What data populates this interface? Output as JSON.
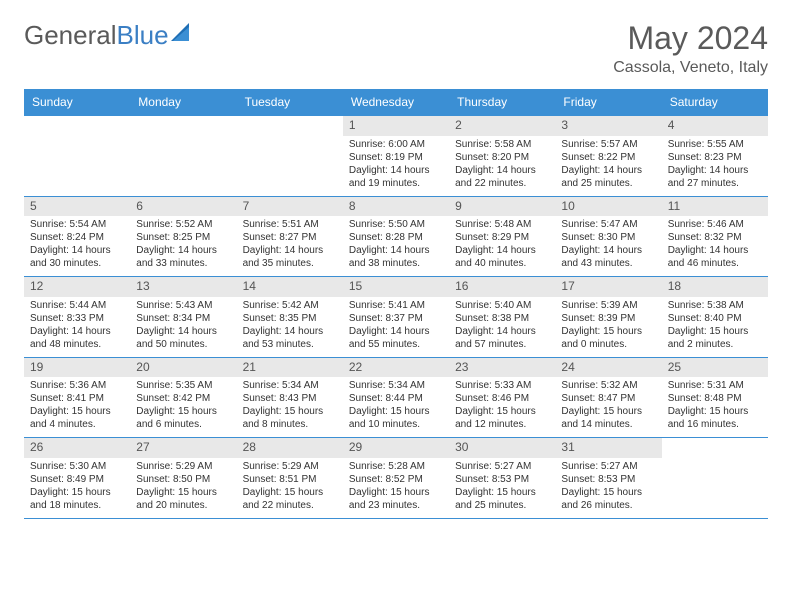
{
  "brand": {
    "part1": "General",
    "part2": "Blue"
  },
  "title": "May 2024",
  "location": "Cassola, Veneto, Italy",
  "colors": {
    "header_bg": "#3b8fd4",
    "header_text": "#ffffff",
    "rule": "#3b8fd4",
    "daynum_bg": "#e8e8e8",
    "text": "#333333",
    "title_text": "#5a5a5a"
  },
  "weekdays": [
    "Sunday",
    "Monday",
    "Tuesday",
    "Wednesday",
    "Thursday",
    "Friday",
    "Saturday"
  ],
  "weeks": [
    [
      null,
      null,
      null,
      {
        "n": "1",
        "sr": "6:00 AM",
        "ss": "8:19 PM",
        "dl": "14 hours and 19 minutes."
      },
      {
        "n": "2",
        "sr": "5:58 AM",
        "ss": "8:20 PM",
        "dl": "14 hours and 22 minutes."
      },
      {
        "n": "3",
        "sr": "5:57 AM",
        "ss": "8:22 PM",
        "dl": "14 hours and 25 minutes."
      },
      {
        "n": "4",
        "sr": "5:55 AM",
        "ss": "8:23 PM",
        "dl": "14 hours and 27 minutes."
      }
    ],
    [
      {
        "n": "5",
        "sr": "5:54 AM",
        "ss": "8:24 PM",
        "dl": "14 hours and 30 minutes."
      },
      {
        "n": "6",
        "sr": "5:52 AM",
        "ss": "8:25 PM",
        "dl": "14 hours and 33 minutes."
      },
      {
        "n": "7",
        "sr": "5:51 AM",
        "ss": "8:27 PM",
        "dl": "14 hours and 35 minutes."
      },
      {
        "n": "8",
        "sr": "5:50 AM",
        "ss": "8:28 PM",
        "dl": "14 hours and 38 minutes."
      },
      {
        "n": "9",
        "sr": "5:48 AM",
        "ss": "8:29 PM",
        "dl": "14 hours and 40 minutes."
      },
      {
        "n": "10",
        "sr": "5:47 AM",
        "ss": "8:30 PM",
        "dl": "14 hours and 43 minutes."
      },
      {
        "n": "11",
        "sr": "5:46 AM",
        "ss": "8:32 PM",
        "dl": "14 hours and 46 minutes."
      }
    ],
    [
      {
        "n": "12",
        "sr": "5:44 AM",
        "ss": "8:33 PM",
        "dl": "14 hours and 48 minutes."
      },
      {
        "n": "13",
        "sr": "5:43 AM",
        "ss": "8:34 PM",
        "dl": "14 hours and 50 minutes."
      },
      {
        "n": "14",
        "sr": "5:42 AM",
        "ss": "8:35 PM",
        "dl": "14 hours and 53 minutes."
      },
      {
        "n": "15",
        "sr": "5:41 AM",
        "ss": "8:37 PM",
        "dl": "14 hours and 55 minutes."
      },
      {
        "n": "16",
        "sr": "5:40 AM",
        "ss": "8:38 PM",
        "dl": "14 hours and 57 minutes."
      },
      {
        "n": "17",
        "sr": "5:39 AM",
        "ss": "8:39 PM",
        "dl": "15 hours and 0 minutes."
      },
      {
        "n": "18",
        "sr": "5:38 AM",
        "ss": "8:40 PM",
        "dl": "15 hours and 2 minutes."
      }
    ],
    [
      {
        "n": "19",
        "sr": "5:36 AM",
        "ss": "8:41 PM",
        "dl": "15 hours and 4 minutes."
      },
      {
        "n": "20",
        "sr": "5:35 AM",
        "ss": "8:42 PM",
        "dl": "15 hours and 6 minutes."
      },
      {
        "n": "21",
        "sr": "5:34 AM",
        "ss": "8:43 PM",
        "dl": "15 hours and 8 minutes."
      },
      {
        "n": "22",
        "sr": "5:34 AM",
        "ss": "8:44 PM",
        "dl": "15 hours and 10 minutes."
      },
      {
        "n": "23",
        "sr": "5:33 AM",
        "ss": "8:46 PM",
        "dl": "15 hours and 12 minutes."
      },
      {
        "n": "24",
        "sr": "5:32 AM",
        "ss": "8:47 PM",
        "dl": "15 hours and 14 minutes."
      },
      {
        "n": "25",
        "sr": "5:31 AM",
        "ss": "8:48 PM",
        "dl": "15 hours and 16 minutes."
      }
    ],
    [
      {
        "n": "26",
        "sr": "5:30 AM",
        "ss": "8:49 PM",
        "dl": "15 hours and 18 minutes."
      },
      {
        "n": "27",
        "sr": "5:29 AM",
        "ss": "8:50 PM",
        "dl": "15 hours and 20 minutes."
      },
      {
        "n": "28",
        "sr": "5:29 AM",
        "ss": "8:51 PM",
        "dl": "15 hours and 22 minutes."
      },
      {
        "n": "29",
        "sr": "5:28 AM",
        "ss": "8:52 PM",
        "dl": "15 hours and 23 minutes."
      },
      {
        "n": "30",
        "sr": "5:27 AM",
        "ss": "8:53 PM",
        "dl": "15 hours and 25 minutes."
      },
      {
        "n": "31",
        "sr": "5:27 AM",
        "ss": "8:53 PM",
        "dl": "15 hours and 26 minutes."
      },
      null
    ]
  ]
}
